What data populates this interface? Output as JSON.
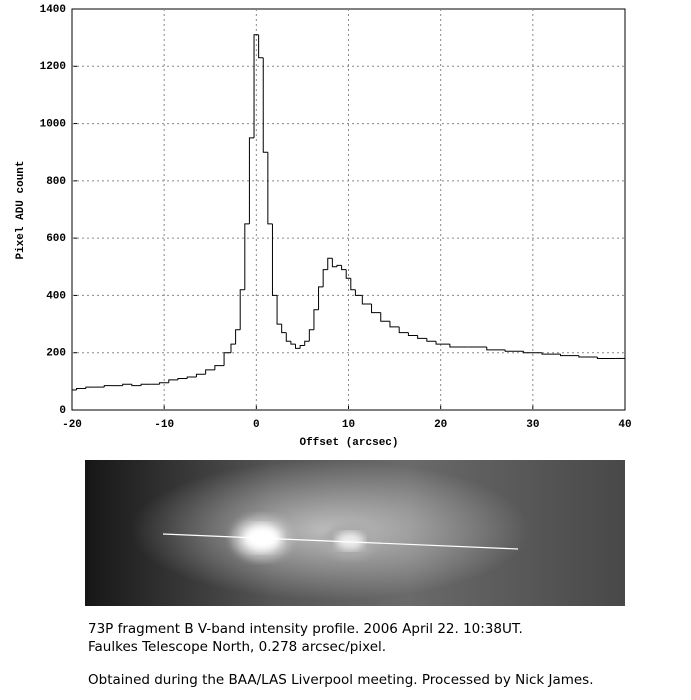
{
  "chart_data": {
    "type": "step",
    "x_label": "Offset (arcsec)",
    "y_label": "Pixel ADU count",
    "x": [
      -20,
      -19,
      -18,
      -17,
      -16,
      -15,
      -14,
      -13,
      -12,
      -11,
      -10,
      -9,
      -8,
      -7,
      -6,
      -5,
      -4,
      -3,
      -2.5,
      -2,
      -1.5,
      -1,
      -0.5,
      0,
      0.5,
      1,
      1.5,
      2,
      2.5,
      3,
      3.5,
      4,
      4.5,
      5,
      5.5,
      6,
      6.5,
      7,
      7.5,
      8,
      8.5,
      9,
      9.5,
      10,
      10.5,
      11,
      12,
      13,
      14,
      15,
      16,
      17,
      18,
      19,
      20,
      22,
      24,
      26,
      28,
      30,
      32,
      34,
      36,
      38,
      40
    ],
    "values": [
      70,
      75,
      80,
      80,
      85,
      85,
      90,
      85,
      90,
      90,
      95,
      105,
      110,
      115,
      125,
      140,
      155,
      200,
      230,
      280,
      420,
      650,
      950,
      1310,
      1230,
      900,
      650,
      400,
      300,
      270,
      240,
      230,
      215,
      225,
      240,
      280,
      350,
      430,
      490,
      530,
      500,
      505,
      490,
      460,
      420,
      400,
      370,
      340,
      310,
      290,
      270,
      260,
      250,
      240,
      230,
      220,
      220,
      210,
      205,
      200,
      195,
      190,
      185,
      180,
      180
    ],
    "color": "#000000",
    "xlim": [
      -20,
      40
    ],
    "xticks": [
      -20,
      -10,
      0,
      10,
      20,
      30,
      40
    ],
    "ylim": [
      0,
      1400
    ],
    "yticks": [
      0,
      200,
      400,
      600,
      800,
      1000,
      1200,
      1400
    ],
    "grid": true
  },
  "caption": [
    "73P fragment B V-band intensity profile. 2006 April 22. 10:38UT.",
    "Faulkes Telescope North, 0.278 arcsec/pixel.",
    "Obtained during the BAA/LAS Liverpool meeting. Processed by Nick James."
  ]
}
